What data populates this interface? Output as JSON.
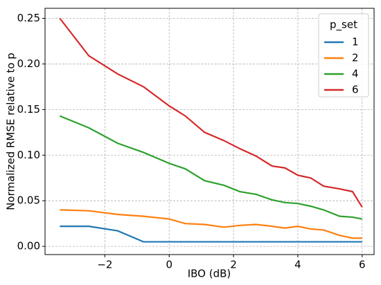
{
  "chart_data": {
    "type": "line",
    "x_label": "IBO (dB)",
    "y_label": "Normalized RMSE relative to p",
    "x": [
      -3.4,
      -2.5,
      -1.6,
      -0.8,
      0,
      0.5,
      1.1,
      1.7,
      2.2,
      2.7,
      3.2,
      3.6,
      4.0,
      4.4,
      4.8,
      5.3,
      5.7,
      6.0
    ],
    "series": [
      {
        "name": "1",
        "color": "#1f77b4",
        "values": [
          0.022,
          0.022,
          0.017,
          0.005,
          0.005,
          0.005,
          0.005,
          0.005,
          0.005,
          0.005,
          0.005,
          0.005,
          0.005,
          0.005,
          0.005,
          0.005,
          0.005,
          0.005
        ]
      },
      {
        "name": "2",
        "color": "#ff7f0e",
        "values": [
          0.04,
          0.039,
          0.035,
          0.033,
          0.03,
          0.025,
          0.024,
          0.021,
          0.023,
          0.024,
          0.022,
          0.02,
          0.022,
          0.019,
          0.018,
          0.012,
          0.009,
          0.009
        ]
      },
      {
        "name": "4",
        "color": "#2ca02c",
        "values": [
          0.143,
          0.13,
          0.113,
          0.103,
          0.091,
          0.085,
          0.072,
          0.067,
          0.06,
          0.057,
          0.051,
          0.048,
          0.047,
          0.044,
          0.04,
          0.033,
          0.032,
          0.03
        ]
      },
      {
        "name": "6",
        "color": "#d62728",
        "values": [
          0.25,
          0.209,
          0.189,
          0.175,
          0.154,
          0.143,
          0.125,
          0.116,
          0.107,
          0.099,
          0.088,
          0.086,
          0.078,
          0.075,
          0.066,
          0.063,
          0.06,
          0.043
        ]
      }
    ],
    "legend_title": "p_set",
    "legend_position": "upper right",
    "xlim": [
      -3.86,
      6.37
    ],
    "xticks": [
      {
        "value": -2,
        "label": "−2"
      },
      0,
      2,
      4,
      6
    ],
    "ylim": [
      -0.009,
      0.261
    ],
    "yticks": [
      {
        "value": 0,
        "label": "0.00"
      },
      0.05,
      {
        "value": 0.1,
        "label": "0.10"
      },
      0.15,
      {
        "value": 0.2,
        "label": "0.20"
      },
      0.25
    ],
    "grid": true
  }
}
